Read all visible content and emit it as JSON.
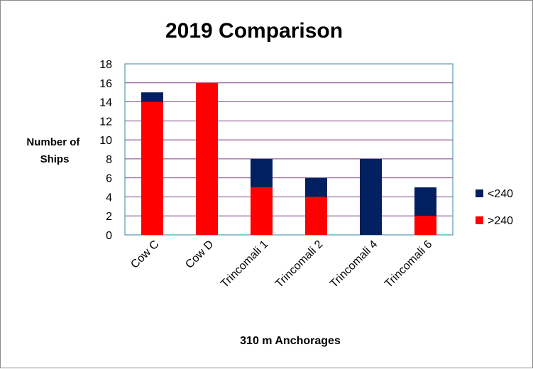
{
  "chart_data": {
    "type": "bar",
    "stacked": true,
    "title": "2019 Comparison",
    "xlabel": "310 m Anchorages",
    "ylabel": "Number of Ships",
    "ylabel_lines": [
      "Number of",
      "Ships"
    ],
    "categories": [
      "Cow C",
      "Cow D",
      "Trincomali 1",
      "Trincomali 2",
      "Trincomali 4",
      "Trincomali 6"
    ],
    "series": [
      {
        "name": ">240",
        "color": "#ff0000",
        "values": [
          14,
          16,
          5,
          4,
          0,
          2
        ]
      },
      {
        "name": "<240",
        "color": "#002060",
        "values": [
          1,
          0,
          3,
          2,
          8,
          3
        ]
      }
    ],
    "ylim": [
      0,
      18
    ],
    "yticks": [
      0,
      2,
      4,
      6,
      8,
      10,
      12,
      14,
      16,
      18
    ],
    "grid": true,
    "gridline_color": "#7f3f7f",
    "legend_position": "right",
    "legend_order": [
      "<240",
      ">240"
    ]
  }
}
